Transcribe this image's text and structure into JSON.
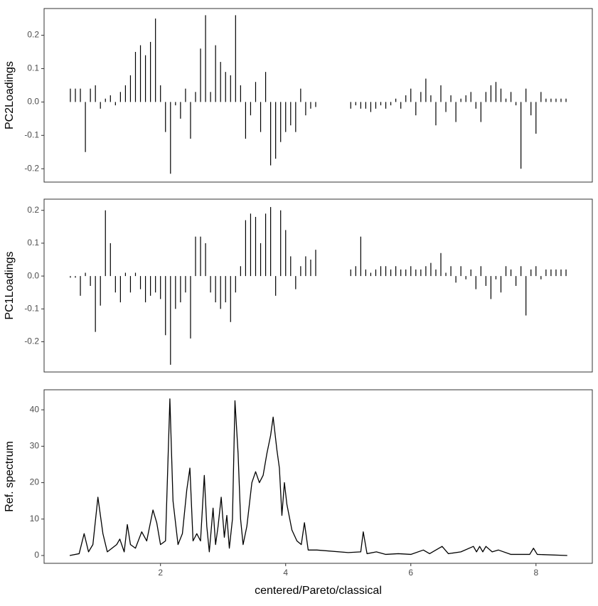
{
  "chart_data": [
    {
      "type": "bar",
      "ylabel": "PC2Loadings",
      "color": "#000000",
      "x": [
        0.56,
        0.64,
        0.72,
        0.8,
        0.88,
        0.96,
        1.04,
        1.12,
        1.2,
        1.28,
        1.36,
        1.44,
        1.52,
        1.6,
        1.68,
        1.76,
        1.84,
        1.92,
        2,
        2.08,
        2.16,
        2.24,
        2.32,
        2.4,
        2.48,
        2.56,
        2.64,
        2.72,
        2.8,
        2.88,
        2.96,
        3.04,
        3.12,
        3.2,
        3.28,
        3.36,
        3.44,
        3.52,
        3.6,
        3.68,
        3.76,
        3.84,
        3.92,
        4,
        4.08,
        4.16,
        4.24,
        4.32,
        4.4,
        4.48,
        5.04,
        5.12,
        5.2,
        5.28,
        5.36,
        5.44,
        5.52,
        5.6,
        5.68,
        5.76,
        5.84,
        5.92,
        6,
        6.08,
        6.16,
        6.24,
        6.32,
        6.4,
        6.48,
        6.56,
        6.64,
        6.72,
        6.8,
        6.88,
        6.96,
        7.04,
        7.12,
        7.2,
        7.28,
        7.36,
        7.44,
        7.52,
        7.6,
        7.68,
        7.76,
        7.84,
        7.92,
        8,
        8.08,
        8.16,
        8.24,
        8.32,
        8.4,
        8.48
      ],
      "values": [
        0.04,
        0.04,
        0.04,
        -0.15,
        0.04,
        0.05,
        -0.02,
        0.01,
        0.02,
        -0.01,
        0.03,
        0.05,
        0.08,
        0.15,
        0.17,
        0.14,
        0.18,
        0.25,
        0.05,
        -0.09,
        -0.215,
        -0.01,
        -0.05,
        0.04,
        -0.11,
        0.03,
        0.16,
        0.26,
        0.03,
        0.17,
        0.12,
        0.09,
        0.08,
        0.26,
        0.05,
        -0.11,
        -0.04,
        0.06,
        -0.09,
        0.09,
        -0.19,
        -0.17,
        -0.12,
        -0.09,
        -0.07,
        -0.09,
        0.04,
        -0.04,
        -0.02,
        -0.015,
        -0.02,
        -0.01,
        -0.02,
        -0.02,
        -0.03,
        -0.02,
        -0.01,
        -0.02,
        -0.01,
        0.01,
        -0.02,
        0.02,
        0.04,
        -0.04,
        0.03,
        0.07,
        0.02,
        -0.07,
        0.05,
        -0.03,
        0.02,
        -0.06,
        0.01,
        0.02,
        0.03,
        -0.02,
        -0.06,
        0.03,
        0.05,
        0.06,
        0.04,
        0.01,
        0.03,
        -0.01,
        -0.2,
        0.04,
        -0.04,
        -0.095,
        0.03,
        0.01,
        0.01,
        0.01,
        0.01,
        0.01
      ],
      "xlim": [
        0.14,
        8.9
      ],
      "ylim": [
        -0.24,
        0.28
      ],
      "yticks": [
        -0.2,
        -0.1,
        {
          "value": 0,
          "label": "0.0"
        },
        0.1,
        0.2
      ]
    },
    {
      "type": "bar",
      "ylabel": "PC1Loadings",
      "color": "#000000",
      "x": [
        0.56,
        0.64,
        0.72,
        0.8,
        0.88,
        0.96,
        1.04,
        1.12,
        1.2,
        1.28,
        1.36,
        1.44,
        1.52,
        1.6,
        1.68,
        1.76,
        1.84,
        1.92,
        2,
        2.08,
        2.16,
        2.24,
        2.32,
        2.4,
        2.48,
        2.56,
        2.64,
        2.72,
        2.8,
        2.88,
        2.96,
        3.04,
        3.12,
        3.2,
        3.28,
        3.36,
        3.44,
        3.52,
        3.6,
        3.68,
        3.76,
        3.84,
        3.92,
        4,
        4.08,
        4.16,
        4.24,
        4.32,
        4.4,
        4.48,
        5.04,
        5.12,
        5.2,
        5.28,
        5.36,
        5.44,
        5.52,
        5.6,
        5.68,
        5.76,
        5.84,
        5.92,
        6,
        6.08,
        6.16,
        6.24,
        6.32,
        6.4,
        6.48,
        6.56,
        6.64,
        6.72,
        6.8,
        6.88,
        6.96,
        7.04,
        7.12,
        7.2,
        7.28,
        7.36,
        7.44,
        7.52,
        7.6,
        7.68,
        7.76,
        7.84,
        7.92,
        8,
        8.08,
        8.16,
        8.24,
        8.32,
        8.4,
        8.48
      ],
      "values": [
        -0.005,
        -0.005,
        -0.06,
        0.01,
        -0.03,
        -0.17,
        -0.09,
        0.2,
        0.1,
        -0.05,
        -0.08,
        0.01,
        -0.05,
        0.01,
        -0.04,
        -0.08,
        -0.06,
        -0.05,
        -0.07,
        -0.18,
        -0.27,
        -0.1,
        -0.08,
        -0.05,
        -0.19,
        0.12,
        0.12,
        0.1,
        -0.05,
        -0.08,
        -0.1,
        -0.08,
        -0.14,
        -0.05,
        0.03,
        0.17,
        0.19,
        0.18,
        0.1,
        0.19,
        0.21,
        -0.06,
        0.2,
        0.14,
        0.06,
        -0.04,
        0.03,
        0.06,
        0.05,
        0.08,
        0.02,
        0.03,
        0.12,
        0.02,
        0.01,
        0.02,
        0.03,
        0.03,
        0.02,
        0.03,
        0.02,
        0.02,
        0.03,
        0.02,
        0.02,
        0.03,
        0.04,
        0.02,
        0.07,
        0.01,
        0.03,
        -0.02,
        0.03,
        -0.01,
        0.02,
        -0.04,
        0.03,
        -0.03,
        -0.07,
        -0.01,
        -0.05,
        0.03,
        0.02,
        -0.03,
        0.03,
        -0.12,
        0.02,
        0.03,
        -0.01,
        0.02,
        0.02,
        0.02,
        0.02,
        0.02
      ],
      "xlim": [
        0.14,
        8.9
      ],
      "ylim": [
        -0.292,
        0.234
      ],
      "yticks": [
        -0.2,
        -0.1,
        {
          "value": 0,
          "label": "0.0"
        },
        0.1,
        0.2
      ]
    },
    {
      "type": "line",
      "ylabel": "Ref. spectrum",
      "xlabel": "centered/Pareto/classical",
      "color": "#000000",
      "x": [
        0.55,
        0.7,
        0.78,
        0.85,
        0.92,
        1.0,
        1.08,
        1.15,
        1.3,
        1.35,
        1.42,
        1.47,
        1.52,
        1.6,
        1.7,
        1.78,
        1.88,
        1.94,
        2.0,
        2.08,
        2.15,
        2.2,
        2.28,
        2.35,
        2.42,
        2.47,
        2.52,
        2.58,
        2.64,
        2.7,
        2.74,
        2.78,
        2.84,
        2.88,
        2.92,
        2.97,
        3.02,
        3.06,
        3.1,
        3.15,
        3.19,
        3.24,
        3.28,
        3.32,
        3.38,
        3.46,
        3.52,
        3.58,
        3.64,
        3.7,
        3.76,
        3.8,
        3.86,
        3.9,
        3.94,
        3.98,
        4.02,
        4.1,
        4.18,
        4.25,
        4.3,
        4.36,
        4.5,
        5.0,
        5.2,
        5.24,
        5.3,
        5.45,
        5.6,
        5.8,
        6.0,
        6.2,
        6.3,
        6.5,
        6.6,
        6.8,
        7.0,
        7.05,
        7.1,
        7.15,
        7.2,
        7.3,
        7.4,
        7.6,
        7.9,
        7.96,
        8.02,
        8.5
      ],
      "values": [
        0,
        0.5,
        6,
        1,
        3,
        16,
        6,
        1,
        3,
        4.5,
        1,
        8.5,
        3,
        2,
        6.5,
        4,
        12.5,
        9,
        3,
        4,
        43,
        15,
        3,
        6,
        18,
        24,
        4,
        6,
        4,
        22,
        8,
        1,
        13,
        3,
        8,
        16,
        5,
        11,
        2,
        10,
        42.5,
        28,
        10,
        3,
        8,
        20,
        23,
        20,
        22,
        28,
        33,
        38,
        29,
        24,
        11,
        20,
        14,
        7,
        4,
        3,
        9,
        1.5,
        1.5,
        0.8,
        1,
        6.5,
        0.5,
        1,
        0.3,
        0.5,
        0.3,
        1.5,
        0.5,
        2.5,
        0.5,
        1,
        2.5,
        1,
        2.5,
        1,
        2.5,
        1,
        1.5,
        0.3,
        0.3,
        2,
        0.3,
        0
      ],
      "xlim": [
        0.14,
        8.9
      ],
      "ylim": [
        -2.15,
        45.5
      ],
      "xticks": [
        2,
        4,
        6,
        8
      ],
      "yticks": [
        0,
        10,
        20,
        30,
        40
      ]
    }
  ]
}
